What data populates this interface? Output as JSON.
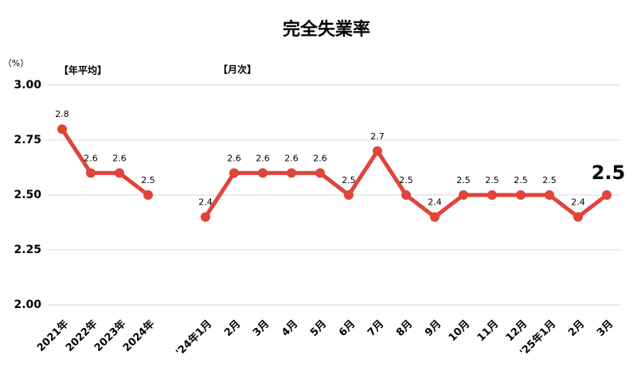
{
  "chart_data": {
    "type": "line",
    "title": "完全失業率",
    "y_unit": "（%）",
    "annotations": [
      "【年平均】",
      "【月次】"
    ],
    "categories": [
      "2021年",
      "2022年",
      "2023年",
      "2024年",
      null,
      "'24年1月",
      "2月",
      "3月",
      "4月",
      "5月",
      "6月",
      "7月",
      "8月",
      "9月",
      "10月",
      "11月",
      "12月",
      "'25年1月",
      "2月",
      "3月"
    ],
    "values": [
      2.8,
      2.6,
      2.6,
      2.5,
      null,
      2.4,
      2.6,
      2.6,
      2.6,
      2.6,
      2.5,
      2.7,
      2.5,
      2.4,
      2.5,
      2.5,
      2.5,
      2.5,
      2.4,
      2.5
    ],
    "color": "#e0443a",
    "ylim": [
      2.0,
      3.0
    ],
    "yticks": [
      {
        "value": 2.0,
        "label": "2.00"
      },
      {
        "value": 2.25,
        "label": "2.25"
      },
      {
        "value": 2.5,
        "label": "2.50"
      },
      {
        "value": 2.75,
        "label": "2.75"
      },
      {
        "value": 3.0,
        "label": "3.00"
      }
    ],
    "grid": true
  }
}
